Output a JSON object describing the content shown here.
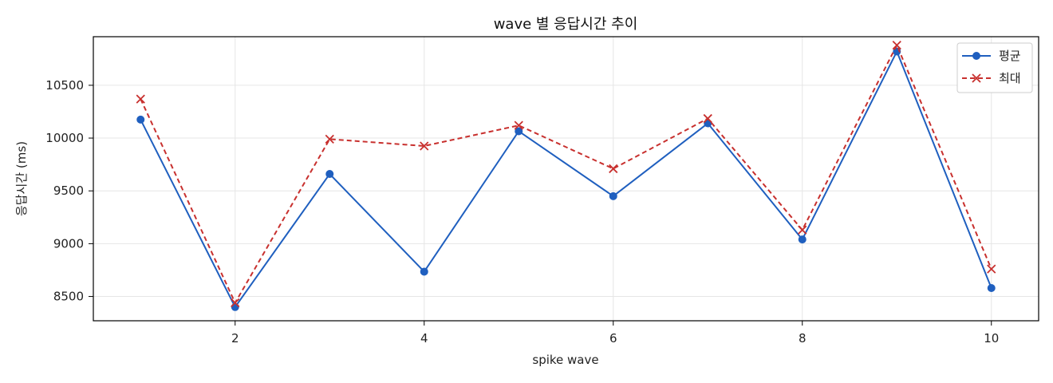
{
  "chart_data": {
    "type": "line",
    "title": "wave 별 응답시간 추이",
    "xlabel": "spike wave",
    "ylabel": "응답시간 (ms)",
    "x": [
      1,
      2,
      3,
      4,
      5,
      6,
      7,
      8,
      9,
      10
    ],
    "x_ticks": [
      2,
      4,
      6,
      8,
      10
    ],
    "y_ticks": [
      8500,
      9000,
      9500,
      10000,
      10500
    ],
    "xlim": [
      0.5,
      10.5
    ],
    "ylim": [
      8270,
      10960
    ],
    "grid": true,
    "legend_position": "top-right",
    "series": [
      {
        "name": "평균",
        "color": "#1f5fbf",
        "marker": "circle",
        "line_style": "solid",
        "values": [
          10175,
          8400,
          9660,
          8735,
          10065,
          9450,
          10140,
          9040,
          10820,
          8580
        ]
      },
      {
        "name": "최대",
        "color": "#c8302e",
        "marker": "x",
        "line_style": "dashed",
        "values": [
          10370,
          8440,
          9990,
          9925,
          10120,
          9710,
          10185,
          9130,
          10880,
          8760
        ]
      }
    ]
  }
}
